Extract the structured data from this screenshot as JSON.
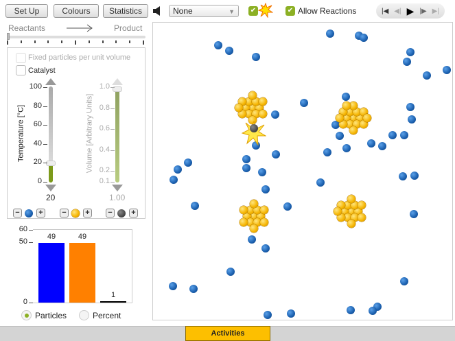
{
  "toolbar": {
    "setup": "Set Up",
    "colours": "Colours",
    "statistics": "Statistics",
    "sound_icon": "speaker-icon",
    "dropdown_value": "None",
    "collision_flash_checked": true,
    "allow_reactions_label": "Allow Reactions",
    "allow_reactions_checked": true
  },
  "media": {
    "buttons": [
      "skip-to-start",
      "step-back",
      "play",
      "step-forward",
      "skip-to-end"
    ]
  },
  "reaction_slider": {
    "left": "Reactants",
    "right": "Product",
    "value": 0
  },
  "panel": {
    "fixed_label": "Fixed particles per unit volume",
    "fixed_checked": false,
    "catalyst_label": "Catalyst",
    "catalyst_checked": false,
    "temperature": {
      "label": "Temperature [°C]",
      "ticks": [
        "100",
        "80",
        "60",
        "40",
        "20",
        "0"
      ],
      "value": "20",
      "level": 20
    },
    "volume": {
      "label": "Volume [Arbitrary Units]",
      "ticks": [
        "1.0",
        "0.8",
        "0.6",
        "0.4",
        "0.2",
        "0.1"
      ],
      "value": "1.00",
      "level": 1.0
    }
  },
  "particle_controls": [
    {
      "color": "#1a5fae"
    },
    {
      "color": "#f5b400"
    },
    {
      "color": "#222222"
    }
  ],
  "chart_data": {
    "type": "bar",
    "categories": [
      "blue",
      "orange",
      "black"
    ],
    "values": [
      49,
      49,
      1
    ],
    "labels": [
      "49",
      "49",
      "1"
    ],
    "colors": [
      "#0000ff",
      "#ff8000",
      "#000000"
    ],
    "yticks": [
      "60",
      "50",
      "0"
    ],
    "ylim": [
      0,
      60
    ]
  },
  "chart_mode": {
    "particles": "Particles",
    "percent": "Percent",
    "selected": "particles"
  },
  "footer": {
    "activities": "Activities"
  }
}
